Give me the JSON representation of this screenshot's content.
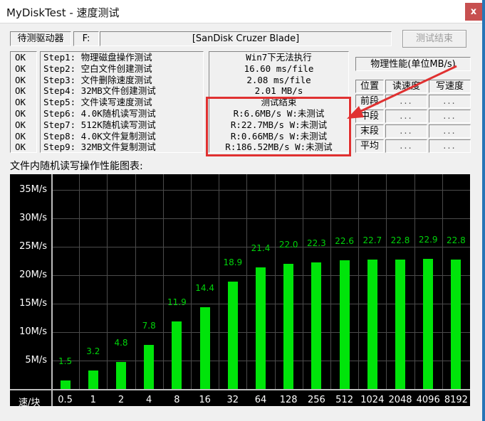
{
  "window": {
    "title": "MyDiskTest - 速度测试",
    "close_glyph": "x"
  },
  "drive_bar": {
    "label": "待测驱动器",
    "drive_letter": "F:",
    "device_name": "[SanDisk Cruzer Blade]",
    "finish_button": "测试结束"
  },
  "steps": {
    "status": [
      "OK",
      "OK",
      "OK",
      "OK",
      "OK",
      "OK",
      "OK",
      "OK",
      "OK"
    ],
    "items": [
      "Step1: 物理磁盘操作测试",
      "Step2: 空白文件创建测试",
      "Step3: 文件删除速度测试",
      "Step4: 32MB文件创建测试",
      "Step5: 文件读写速度测试",
      "Step6: 4.0K随机读写测试",
      "Step7: 512K随机读写测试",
      "Step8: 4.0K文件复制测试",
      "Step9: 32MB文件复制测试"
    ]
  },
  "results": {
    "lines": [
      "Win7下无法执行",
      "16.60 ms/file",
      "2.08 ms/file",
      "2.01 MB/s",
      "测试结束",
      "R:6.6MB/s W:未测试",
      "R:22.7MB/s W:未测试",
      "R:0.66MB/s W:未测试",
      "R:186.52MB/s W:未测试"
    ]
  },
  "physical": {
    "title": "物理性能(单位MB/s)",
    "columns": [
      "位置",
      "读速度",
      "写速度"
    ],
    "rows": [
      {
        "label": "前段",
        "read": "...",
        "write": "..."
      },
      {
        "label": "中段",
        "read": "...",
        "write": "..."
      },
      {
        "label": "末段",
        "read": "...",
        "write": "..."
      },
      {
        "label": "平均",
        "read": "...",
        "write": "..."
      }
    ]
  },
  "chart_section": {
    "heading": "文件内随机读写操作性能图表:"
  },
  "chart_data": {
    "type": "bar",
    "title": "文件内随机读写操作性能图表",
    "categories": [
      "0.5",
      "1",
      "2",
      "4",
      "8",
      "16",
      "32",
      "64",
      "128",
      "256",
      "512",
      "1024",
      "2048",
      "4096",
      "8192"
    ],
    "values": [
      1.5,
      3.2,
      4.8,
      7.8,
      11.9,
      14.4,
      18.9,
      21.4,
      22.0,
      22.3,
      22.6,
      22.7,
      22.8,
      22.9,
      22.8
    ],
    "xlabel": "速/块",
    "ylabel": "M/s",
    "yticks": [
      "35M/s",
      "30M/s",
      "25M/s",
      "20M/s",
      "15M/s",
      "10M/s",
      "5M/s"
    ],
    "ytick_values": [
      35,
      30,
      25,
      20,
      15,
      10,
      5
    ],
    "ylim": [
      0,
      37.75
    ],
    "grid": true,
    "bar_color": "#00e40a",
    "label_color": "#00d40a",
    "background": "#000000",
    "tick_text_color": "#ffffff"
  },
  "annotation": {
    "highlight_color": "#e03131"
  }
}
